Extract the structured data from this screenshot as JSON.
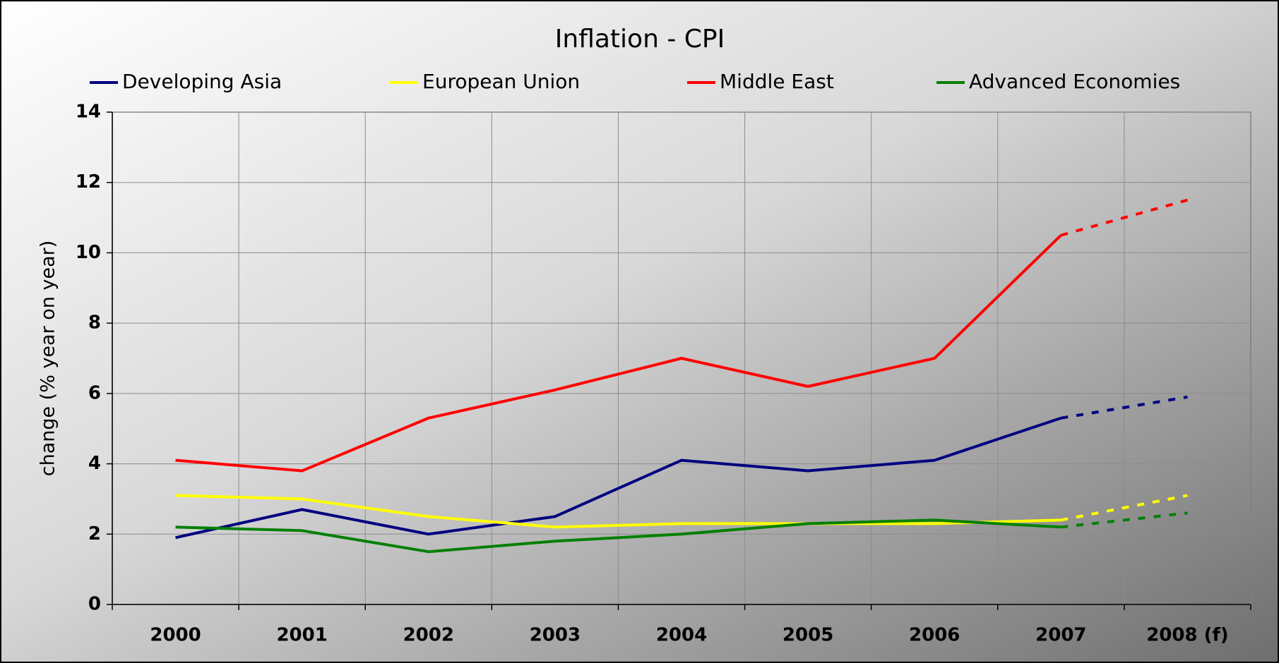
{
  "chart_data": {
    "type": "line",
    "title": "Inflation - CPI",
    "y_label": "change (% year on year)",
    "categories": [
      "2000",
      "2001",
      "2002",
      "2003",
      "2004",
      "2005",
      "2006",
      "2007",
      "2008 (f)"
    ],
    "forecast_start": 7,
    "series": [
      {
        "name": "Developing Asia",
        "color": "#000080",
        "values": [
          1.9,
          2.7,
          2.0,
          2.5,
          4.1,
          3.8,
          4.1,
          5.3,
          5.9
        ]
      },
      {
        "name": "European Union",
        "color": "#ffff00",
        "values": [
          3.1,
          3.0,
          2.5,
          2.2,
          2.3,
          2.3,
          2.3,
          2.4,
          3.1
        ]
      },
      {
        "name": "Middle East",
        "color": "#ff0000",
        "values": [
          4.1,
          3.8,
          5.3,
          6.1,
          7.0,
          6.2,
          7.0,
          10.5,
          11.5
        ]
      },
      {
        "name": "Advanced Economies",
        "color": "#008000",
        "values": [
          2.2,
          2.1,
          1.5,
          1.8,
          2.0,
          2.3,
          2.4,
          2.2,
          2.6
        ]
      }
    ],
    "ylim": [
      0,
      14
    ],
    "yticks": [
      0,
      2,
      4,
      6,
      8,
      10,
      12,
      14
    ],
    "grid": true
  }
}
